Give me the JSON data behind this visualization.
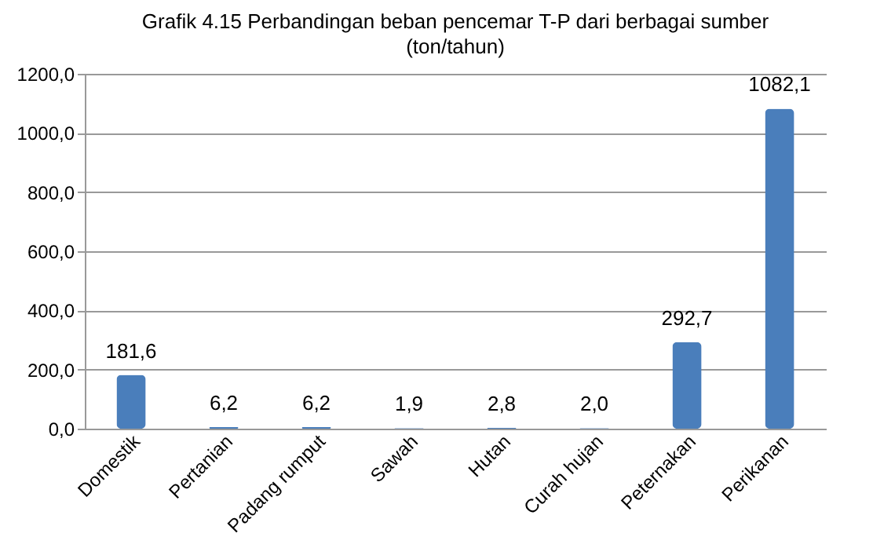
{
  "chart_data": {
    "type": "bar",
    "title": "Grafik 4.15 Perbandingan beban pencemar T-P dari berbagai sumber",
    "subtitle": "(ton/tahun)",
    "categories": [
      "Domestik",
      "Pertanian",
      "Padang rumput",
      "Sawah",
      "Hutan",
      "Curah hujan",
      "Peternakan",
      "Perikanan"
    ],
    "values": [
      181.6,
      6.2,
      6.2,
      1.9,
      2.8,
      2.0,
      292.7,
      1082.1
    ],
    "value_labels": [
      "181,6",
      "6,2",
      "6,2",
      "1,9",
      "2,8",
      "2,0",
      "292,7",
      "1082,1"
    ],
    "color": "#4a7ebb",
    "ylim": [
      0,
      1200
    ],
    "yticks": [
      {
        "value": 0,
        "label": "0,0"
      },
      {
        "value": 200,
        "label": "200,0"
      },
      {
        "value": 400,
        "label": "400,0"
      },
      {
        "value": 600,
        "label": "600,0"
      },
      {
        "value": 800,
        "label": "800,0"
      },
      {
        "value": 1000,
        "label": "1000,0"
      },
      {
        "value": 1200,
        "label": "1200,0"
      }
    ],
    "grid": "y"
  }
}
